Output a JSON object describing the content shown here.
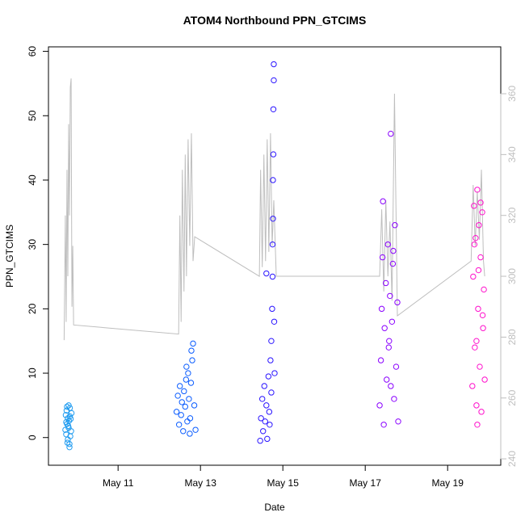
{
  "chart_data": {
    "type": "scatter",
    "title": "ATOM4 Northbound PPN_GTCIMS",
    "x_label": "Date",
    "y_label": "PPN_GTCIMS",
    "xlim": [
      9.31,
      20.29
    ],
    "xticks": [
      {
        "value": 11,
        "label": "May 11"
      },
      {
        "value": 13,
        "label": "May 13"
      },
      {
        "value": 15,
        "label": "May 15"
      },
      {
        "value": 17,
        "label": "May 17"
      },
      {
        "value": 19,
        "label": "May 19"
      }
    ],
    "ylim": [
      -4.3,
      60.7
    ],
    "yticks": [
      0,
      10,
      20,
      30,
      40,
      50,
      60
    ],
    "y2lim": [
      237.9,
      375.4
    ],
    "y2ticks": [
      240,
      260,
      280,
      300,
      320,
      340,
      360
    ],
    "y2_color": "#bebebe",
    "grid": false,
    "series": [
      {
        "type": "line",
        "axis": "y2",
        "color": "#bebebe",
        "x": [
          9.69,
          9.72,
          9.74,
          9.76,
          9.78,
          9.8,
          9.82,
          9.84,
          9.86,
          9.88,
          9.9,
          9.92,
          12.47,
          12.5,
          12.53,
          12.56,
          12.6,
          12.63,
          12.66,
          12.7,
          12.74,
          12.78,
          12.82,
          12.86,
          14.43,
          14.46,
          14.5,
          14.54,
          14.58,
          14.62,
          14.66,
          14.7,
          14.74,
          14.78,
          14.84,
          17.35,
          17.4,
          17.45,
          17.5,
          17.55,
          17.6,
          17.65,
          17.71,
          17.78,
          19.57,
          19.62,
          19.67,
          19.72,
          19.77,
          19.82,
          19.87,
          19.9
        ],
        "values": [
          279,
          320,
          285,
          335,
          300,
          350,
          320,
          362,
          365,
          290,
          310,
          284,
          281,
          320,
          285,
          335,
          295,
          340,
          300,
          345,
          310,
          347,
          305,
          313,
          300,
          335,
          303,
          340,
          305,
          345,
          308,
          347,
          310,
          325,
          300,
          300,
          322,
          295,
          325,
          300,
          318,
          292,
          360,
          287,
          305,
          330,
          310,
          328,
          312,
          335,
          305,
          300
        ]
      },
      {
        "type": "scatter",
        "color": "#1e9bf0",
        "x": [
          9.72,
          9.73,
          9.74,
          9.75,
          9.76,
          9.77,
          9.78,
          9.79,
          9.8,
          9.81,
          9.82,
          9.83,
          9.84,
          9.85,
          9.86,
          9.87,
          9.74,
          9.78,
          9.8,
          9.83,
          9.76,
          9.82
        ],
        "values": [
          1.2,
          3.5,
          0.5,
          4.2,
          2.1,
          -0.8,
          3.0,
          1.8,
          5.0,
          2.6,
          -1.5,
          4.6,
          0.2,
          2.9,
          1.0,
          3.8,
          2.4,
          -0.3,
          1.5,
          3.3,
          4.8,
          -1.0
        ]
      },
      {
        "type": "scatter",
        "color": "#0a5cff",
        "x": [
          12.42,
          12.45,
          12.48,
          12.5,
          12.53,
          12.55,
          12.58,
          12.6,
          12.63,
          12.65,
          12.68,
          12.7,
          12.72,
          12.75,
          12.77,
          12.8,
          12.82,
          12.85,
          12.88,
          12.74,
          12.78,
          12.66
        ],
        "values": [
          4.0,
          6.5,
          2.0,
          8.0,
          3.5,
          5.5,
          1.0,
          7.2,
          4.8,
          9.0,
          2.5,
          10.0,
          6.0,
          3.0,
          8.5,
          12.0,
          14.6,
          5.0,
          1.2,
          0.6,
          13.5,
          11.0
        ]
      },
      {
        "type": "scatter",
        "color": "#2a14ff",
        "x": [
          14.45,
          14.47,
          14.5,
          14.52,
          14.55,
          14.57,
          14.6,
          14.62,
          14.65,
          14.67,
          14.7,
          14.72,
          14.74,
          14.75,
          14.75,
          14.76,
          14.76,
          14.77,
          14.77,
          14.78,
          14.78,
          14.79,
          14.8,
          14.6,
          14.68,
          14.72
        ],
        "values": [
          -0.5,
          3.0,
          6.0,
          1.0,
          8.0,
          2.5,
          5.0,
          -0.2,
          9.5,
          4.0,
          12.0,
          15.0,
          20.0,
          25.0,
          30.0,
          34.0,
          40.0,
          44.0,
          51.0,
          55.5,
          58.0,
          18.0,
          10.0,
          25.5,
          2.0,
          7.0
        ]
      },
      {
        "type": "scatter",
        "color": "#8a00ff",
        "x": [
          17.35,
          17.38,
          17.4,
          17.42,
          17.45,
          17.47,
          17.5,
          17.52,
          17.55,
          17.57,
          17.6,
          17.62,
          17.65,
          17.67,
          17.7,
          17.72,
          17.75,
          17.78,
          17.8,
          17.43,
          17.58,
          17.62,
          17.68
        ],
        "values": [
          5,
          12,
          20,
          28,
          2,
          17,
          24,
          9,
          30,
          14,
          22,
          47.2,
          18,
          27,
          6,
          33,
          11,
          21,
          2.5,
          36.7,
          15,
          8,
          29
        ]
      },
      {
        "type": "scatter",
        "color": "#ff10cc",
        "x": [
          19.6,
          19.62,
          19.64,
          19.66,
          19.68,
          19.7,
          19.72,
          19.74,
          19.76,
          19.78,
          19.8,
          19.82,
          19.84,
          19.86,
          19.88,
          19.9,
          19.65,
          19.7,
          19.75,
          19.8,
          19.85,
          19.72
        ],
        "values": [
          8,
          25,
          36,
          14,
          31,
          5,
          38.5,
          20,
          33,
          11,
          28,
          4,
          35,
          17,
          23,
          9,
          30,
          15,
          26,
          36.5,
          19,
          2
        ]
      }
    ]
  }
}
